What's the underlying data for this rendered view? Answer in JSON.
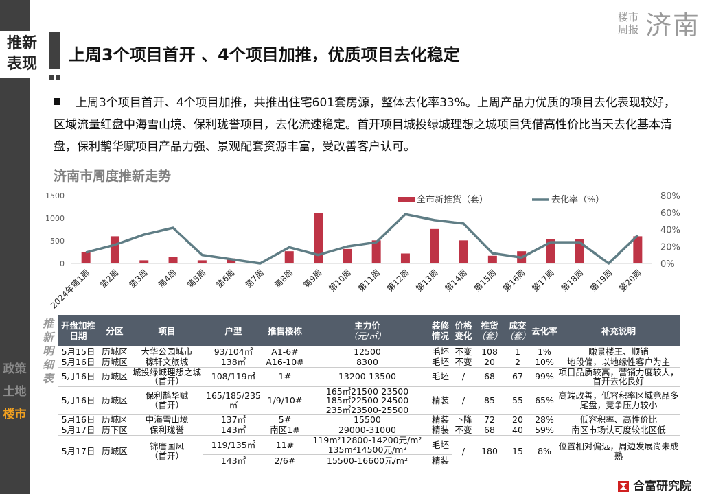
{
  "section": {
    "label_line1": "推新",
    "label_line2": "表现"
  },
  "brand": {
    "small1": "楼市",
    "small2": "周报",
    "city": "济南"
  },
  "title": "上周3个项目首开 、4个项目加推，优质项目去化稳定",
  "paragraph": "上周3个项目首开、4个项目加推，共推出住宅601套房源，整体去化率33%。上周产品力优质的项目去化表现较好，区域流量红盘中海雪山境、保利珑誉项目，去化流速稳定。首开项目城投绿城理想之城项目凭借高性价比当天去化基本清盘，保利鹊华赋项目产品力强、景观配套资源丰富，受改善客户认可。",
  "chart_title": "济南市周度推新走势",
  "chart_data": {
    "type": "bar+line",
    "categories": [
      "2024年第1周",
      "第2周",
      "第3周",
      "第4周",
      "第5周",
      "第6周",
      "第7周",
      "第8周",
      "第9周",
      "第10周",
      "第11周",
      "第12周",
      "第13周",
      "第14周",
      "第15周",
      "第16周",
      "第17周",
      "第18周",
      "第19周",
      "第20周"
    ],
    "series": [
      {
        "name": "全市新推货（套）",
        "type": "bar",
        "axis": "left",
        "color": "#be3446",
        "values": [
          250,
          600,
          70,
          150,
          70,
          110,
          0,
          270,
          1110,
          320,
          510,
          220,
          760,
          510,
          170,
          270,
          540,
          540,
          10,
          600
        ]
      },
      {
        "name": "去化率（%）",
        "type": "line",
        "axis": "right",
        "color": "#5f7d85",
        "values": [
          13,
          22,
          34,
          42,
          10,
          5,
          0,
          19,
          10,
          20,
          25,
          58,
          51,
          47,
          12,
          7,
          25,
          25,
          0,
          33
        ]
      }
    ],
    "left_ticks": [
      "0",
      "500",
      "1000",
      "1500"
    ],
    "ylim": [
      0,
      1500
    ],
    "right_ticks": [
      "0%",
      "20%",
      "40%",
      "60%",
      "80%"
    ],
    "y2lim": [
      0,
      80
    ],
    "legend": "top-right"
  },
  "table": {
    "side_label": "推新明细表",
    "headers": {
      "date": "开盘加推日期",
      "district": "分区",
      "project": "项目",
      "type": "户型",
      "building": "推售楼栋",
      "price": "主力价",
      "price_unit": "（元/㎡）",
      "deco": "装修情况",
      "change": "价格变化",
      "supply": "推货",
      "supply_unit": "（套）",
      "deal": "成交",
      "deal_unit": "（套）",
      "rate": "去化率",
      "note": "补充说明"
    },
    "rows": [
      {
        "date": "5月15日",
        "district": "历城区",
        "project": "大华公园城市",
        "sub": "",
        "type": "93/104㎡",
        "building": "A1-6#",
        "price": "12500",
        "deco": "毛坯",
        "change": "不变",
        "supply": "108",
        "deal": "1",
        "rate": "1%",
        "note": "瞰景楼王、顺销"
      },
      {
        "date": "5月16日",
        "district": "历城区",
        "project": "稼轩文旅城",
        "sub": "",
        "type": "138㎡",
        "building": "A16-10#",
        "price": "8300",
        "deco": "毛坯",
        "change": "不变",
        "supply": "20",
        "deal": "2",
        "rate": "10%",
        "note": "地段偏，以地缘性客户为主"
      },
      {
        "date": "5月16日",
        "district": "历城区",
        "project": "城投绿城理想之城",
        "sub": "（首开）",
        "type": "108/119㎡",
        "building": "1#",
        "price": "13200-13500",
        "deco": "毛坯",
        "change": "/",
        "supply": "68",
        "deal": "67",
        "rate": "99%",
        "note": "项目品质较高，营销力度较大，首开去化良好"
      },
      {
        "date": "5月16日",
        "district": "历城区",
        "project": "保利鹊华赋",
        "sub": "（首开）",
        "type": "165/185/235㎡",
        "building": "1/9/10#",
        "price": "165㎡21500-23500",
        "price2": "185㎡22500-24500",
        "price3": "235㎡23500-25500",
        "deco": "精装",
        "change": "/",
        "supply": "85",
        "deal": "55",
        "rate": "65%",
        "note": "高端改善，低容积率区域竞品多尾盘，竞争压力较小"
      },
      {
        "date": "5月16日",
        "district": "历城区",
        "project": "中海雪山境",
        "sub": "",
        "type": "137㎡",
        "building": "5#",
        "price": "15500",
        "deco": "精装",
        "change": "下降",
        "supply": "72",
        "deal": "20",
        "rate": "28%",
        "note": "低容积率、高性价比"
      },
      {
        "date": "5月17日",
        "district": "历下区",
        "project": "保利珑誉",
        "sub": "",
        "type": "143㎡",
        "building": "南区1#",
        "price": "29000-31000",
        "deco": "精装",
        "change": "不变",
        "supply": "68",
        "deal": "40",
        "rate": "59%",
        "note": "南区市场认可度较北区低"
      },
      {
        "date": "5月17日",
        "district": "历城区",
        "project": "锦唐国风",
        "sub": "（首开）",
        "type": "119/135㎡",
        "building": "11#",
        "price": "119m²12800-14200元/m²",
        "price2": "135m²14500元/m²",
        "deco": "毛坯",
        "change": "/",
        "supply": "180",
        "deal": "15",
        "rate": "8%",
        "note": "位置相对偏远，周边发展尚未成熟",
        "type_b": "143㎡",
        "building_b": "2/6#",
        "price_b": "15500-16600元/m²",
        "deco_b": "精装"
      }
    ]
  },
  "side_nav": [
    "政策",
    "土地",
    "楼市"
  ],
  "logo": "合富研究院"
}
